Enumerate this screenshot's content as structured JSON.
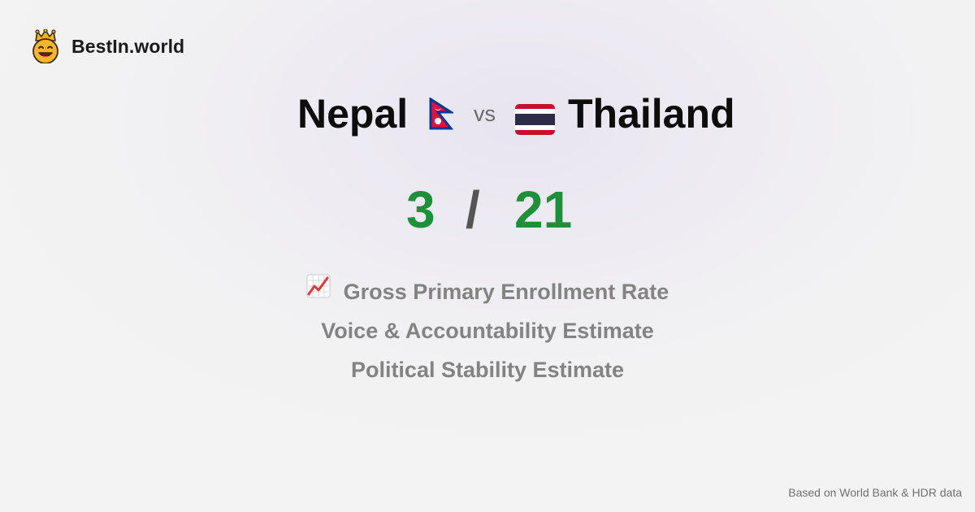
{
  "brand": {
    "name": "BestIn.world",
    "icon": "crowned-smiley-icon"
  },
  "comparison": {
    "left_country": "Nepal",
    "left_flag": "nepal-flag-icon",
    "vs": "vs",
    "right_country": "Thailand",
    "right_flag": "thailand-flag-icon",
    "left_score": "3",
    "separator": "/",
    "right_score": "21",
    "score_color": "#1f8f3a"
  },
  "metrics": [
    {
      "label": "Gross Primary Enrollment Rate",
      "icon": "chart-increasing-icon"
    },
    {
      "label": "Voice & Accountability Estimate"
    },
    {
      "label": "Political Stability Estimate"
    }
  ],
  "footer": {
    "source": "Based on World Bank & HDR data"
  }
}
